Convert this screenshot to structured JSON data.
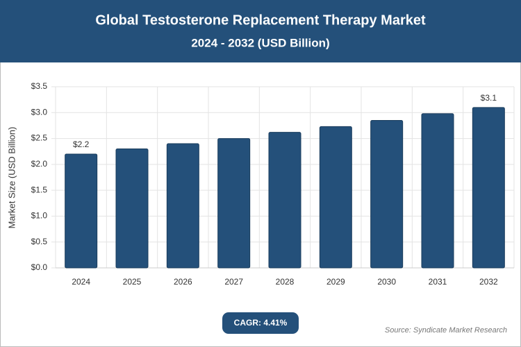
{
  "chart_data": {
    "type": "bar",
    "title": "Global Testosterone Replacement Therapy Market",
    "subtitle": "2024 - 2032 (USD Billion)",
    "y_label": "Market Size (USD Billion)",
    "categories": [
      "2024",
      "2025",
      "2026",
      "2027",
      "2028",
      "2029",
      "2030",
      "2031",
      "2032"
    ],
    "values": [
      2.2,
      2.3,
      2.4,
      2.5,
      2.62,
      2.73,
      2.85,
      2.98,
      3.1
    ],
    "value_labels": [
      "$2.2",
      null,
      null,
      null,
      null,
      null,
      null,
      null,
      "$3.1"
    ],
    "color": "#24507a",
    "ylim": [
      0,
      3.5
    ],
    "yticks": [
      {
        "value": 0,
        "label": "$0.0"
      },
      {
        "value": 0.5,
        "label": "$0.5"
      },
      {
        "value": 1,
        "label": "$1.0"
      },
      {
        "value": 1.5,
        "label": "$1.5"
      },
      {
        "value": 2,
        "label": "$2.0"
      },
      {
        "value": 2.5,
        "label": "$2.5"
      },
      {
        "value": 3,
        "label": "$3.0"
      },
      {
        "value": 3.5,
        "label": "$3.5"
      }
    ],
    "grid": true,
    "cagr": "CAGR: 4.41%",
    "source": "Source: Syndicate Market Research"
  }
}
